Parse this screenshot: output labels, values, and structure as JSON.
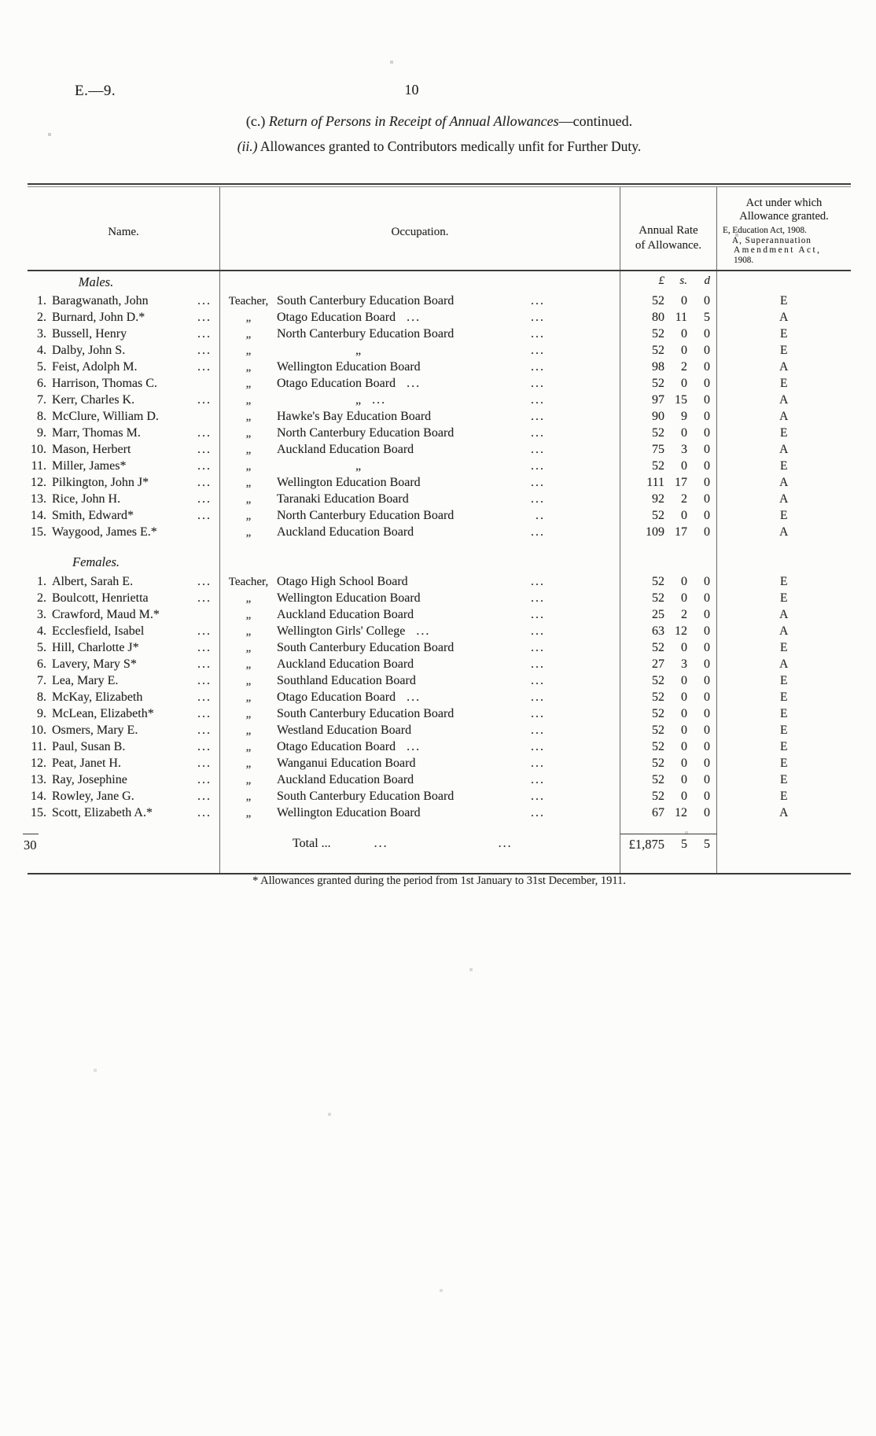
{
  "page": {
    "doc_ref": "E.—9.",
    "page_number": "10",
    "title_prefix": "(c.)",
    "title_main": "Return of Persons in Receipt of Annual Allowances",
    "title_suffix": "—continued.",
    "subtitle_prefix": "(ii.)",
    "subtitle_main": "Allowances granted to Contributors medically unfit for Further Duty."
  },
  "table": {
    "headers": {
      "name": "Name.",
      "occupation": "Occupation.",
      "rate_line1": "Annual Rate",
      "rate_line2": "of Allowance.",
      "act_line1": "Act under which",
      "act_line2": "Allowance granted.",
      "act_note1": "E, Education Act, 1908.",
      "act_note2": "A, Superannuation",
      "act_note3": "Amendment Act,",
      "act_note4": "1908.",
      "currency": {
        "pounds": "£",
        "shillings": "s.",
        "pence": "d"
      }
    },
    "sections": [
      {
        "label": "Males.",
        "currency_header": true,
        "rows": [
          {
            "num": "1.",
            "name": "Baragwanath, John",
            "name_dots": "...",
            "prefix": "Teacher,",
            "board": "South Canterbury Education Board",
            "board_dots": "",
            "end_dots": "...",
            "pounds": "52",
            "shillings": "0",
            "pence": "0",
            "act": "E"
          },
          {
            "num": "2.",
            "name": "Burnard, John D.*",
            "name_dots": "...",
            "prefix": "„",
            "board": "Otago Education Board",
            "board_dots": "...",
            "end_dots": "...",
            "pounds": "80",
            "shillings": "11",
            "pence": "5",
            "act": "A"
          },
          {
            "num": "3.",
            "name": "Bussell, Henry",
            "name_dots": "...",
            "prefix": "„",
            "board": "North Canterbury Education Board",
            "board_dots": "",
            "end_dots": "...",
            "pounds": "52",
            "shillings": "0",
            "pence": "0",
            "act": "E"
          },
          {
            "num": "4.",
            "name": "Dalby, John S.",
            "name_dots": "...",
            "prefix": "„",
            "board": "„",
            "board_dots": "",
            "end_dots": "...",
            "pounds": "52",
            "shillings": "0",
            "pence": "0",
            "act": "E"
          },
          {
            "num": "5.",
            "name": "Feist, Adolph M.",
            "name_dots": "...",
            "prefix": "„",
            "board": "Wellington Education Board",
            "board_dots": "",
            "end_dots": "...",
            "pounds": "98",
            "shillings": "2",
            "pence": "0",
            "act": "A"
          },
          {
            "num": "6.",
            "name": "Harrison, Thomas C.",
            "name_dots": "",
            "prefix": "„",
            "board": "Otago Education Board",
            "board_dots": "...",
            "end_dots": "...",
            "pounds": "52",
            "shillings": "0",
            "pence": "0",
            "act": "E"
          },
          {
            "num": "7.",
            "name": "Kerr, Charles K.",
            "name_dots": "...",
            "prefix": "„",
            "board": "„",
            "board_dots": "...",
            "end_dots": "...",
            "pounds": "97",
            "shillings": "15",
            "pence": "0",
            "act": "A"
          },
          {
            "num": "8.",
            "name": "McClure, William D.",
            "name_dots": "",
            "prefix": "„",
            "board": "Hawke's Bay Education Board",
            "board_dots": "",
            "end_dots": "...",
            "pounds": "90",
            "shillings": "9",
            "pence": "0",
            "act": "A"
          },
          {
            "num": "9.",
            "name": "Marr, Thomas M.",
            "name_dots": "...",
            "prefix": "„",
            "board": "North Canterbury Education Board",
            "board_dots": "",
            "end_dots": "...",
            "pounds": "52",
            "shillings": "0",
            "pence": "0",
            "act": "E"
          },
          {
            "num": "10.",
            "name": "Mason, Herbert",
            "name_dots": "...",
            "prefix": "„",
            "board": "Auckland Education Board",
            "board_dots": "",
            "end_dots": "...",
            "pounds": "75",
            "shillings": "3",
            "pence": "0",
            "act": "A"
          },
          {
            "num": "11.",
            "name": "Miller, James*",
            "name_dots": "...",
            "prefix": "„",
            "board": "„",
            "board_dots": "",
            "end_dots": "...",
            "pounds": "52",
            "shillings": "0",
            "pence": "0",
            "act": "E"
          },
          {
            "num": "12.",
            "name": "Pilkington, John J*",
            "name_dots": "...",
            "prefix": "„",
            "board": "Wellington Education Board",
            "board_dots": "",
            "end_dots": "...",
            "pounds": "111",
            "shillings": "17",
            "pence": "0",
            "act": "A"
          },
          {
            "num": "13.",
            "name": "Rice, John H.",
            "name_dots": "...",
            "prefix": "„",
            "board": "Taranaki Education Board",
            "board_dots": "",
            "end_dots": "...",
            "pounds": "92",
            "shillings": "2",
            "pence": "0",
            "act": "A"
          },
          {
            "num": "14.",
            "name": "Smith, Edward*",
            "name_dots": "...",
            "prefix": "„",
            "board": "North Canterbury Education Board",
            "board_dots": "",
            "end_dots": "..",
            "pounds": "52",
            "shillings": "0",
            "pence": "0",
            "act": "E"
          },
          {
            "num": "15.",
            "name": "Waygood, James E.*",
            "name_dots": "",
            "prefix": "„",
            "board": "Auckland Education Board",
            "board_dots": "",
            "end_dots": "...",
            "pounds": "109",
            "shillings": "17",
            "pence": "0",
            "act": "A"
          }
        ]
      },
      {
        "label": "Females.",
        "currency_header": false,
        "rows": [
          {
            "num": "1.",
            "name": "Albert, Sarah E.",
            "name_dots": "...",
            "prefix": "Teacher,",
            "board": "Otago High School Board",
            "board_dots": "",
            "end_dots": "...",
            "pounds": "52",
            "shillings": "0",
            "pence": "0",
            "act": "E"
          },
          {
            "num": "2.",
            "name": "Boulcott, Henrietta",
            "name_dots": "...",
            "prefix": "„",
            "board": "Wellington Education Board",
            "board_dots": "",
            "end_dots": "...",
            "pounds": "52",
            "shillings": "0",
            "pence": "0",
            "act": "E"
          },
          {
            "num": "3.",
            "name": "Crawford, Maud M.*",
            "name_dots": "",
            "prefix": "„",
            "board": "Auckland Education Board",
            "board_dots": "",
            "end_dots": "...",
            "pounds": "25",
            "shillings": "2",
            "pence": "0",
            "act": "A"
          },
          {
            "num": "4.",
            "name": "Ecclesfield, Isabel",
            "name_dots": "...",
            "prefix": "„",
            "board": "Wellington Girls' College",
            "board_dots": "...",
            "end_dots": "...",
            "pounds": "63",
            "shillings": "12",
            "pence": "0",
            "act": "A"
          },
          {
            "num": "5.",
            "name": "Hill, Charlotte J*",
            "name_dots": "...",
            "prefix": "„",
            "board": "South Canterbury Education Board",
            "board_dots": "",
            "end_dots": "...",
            "pounds": "52",
            "shillings": "0",
            "pence": "0",
            "act": "E"
          },
          {
            "num": "6.",
            "name": "Lavery, Mary S*",
            "name_dots": "...",
            "prefix": "„",
            "board": "Auckland Education Board",
            "board_dots": "",
            "end_dots": "...",
            "pounds": "27",
            "shillings": "3",
            "pence": "0",
            "act": "A"
          },
          {
            "num": "7.",
            "name": "Lea, Mary E.",
            "name_dots": "...",
            "prefix": "„",
            "board": "Southland Education Board",
            "board_dots": "",
            "end_dots": "...",
            "pounds": "52",
            "shillings": "0",
            "pence": "0",
            "act": "E"
          },
          {
            "num": "8.",
            "name": "McKay, Elizabeth",
            "name_dots": "...",
            "prefix": "„",
            "board": "Otago Education Board",
            "board_dots": "...",
            "end_dots": "...",
            "pounds": "52",
            "shillings": "0",
            "pence": "0",
            "act": "E"
          },
          {
            "num": "9.",
            "name": "McLean, Elizabeth*",
            "name_dots": "...",
            "prefix": "„",
            "board": "South Canterbury Education Board",
            "board_dots": "",
            "end_dots": "...",
            "pounds": "52",
            "shillings": "0",
            "pence": "0",
            "act": "E"
          },
          {
            "num": "10.",
            "name": "Osmers, Mary E.",
            "name_dots": "...",
            "prefix": "„",
            "board": "Westland Education Board",
            "board_dots": "",
            "end_dots": "...",
            "pounds": "52",
            "shillings": "0",
            "pence": "0",
            "act": "E"
          },
          {
            "num": "11.",
            "name": "Paul, Susan B.",
            "name_dots": "...",
            "prefix": "„",
            "board": "Otago Education Board",
            "board_dots": "...",
            "end_dots": "...",
            "pounds": "52",
            "shillings": "0",
            "pence": "0",
            "act": "E"
          },
          {
            "num": "12.",
            "name": "Peat, Janet H.",
            "name_dots": "...",
            "prefix": "„",
            "board": "Wanganui Education Board",
            "board_dots": "",
            "end_dots": "...",
            "pounds": "52",
            "shillings": "0",
            "pence": "0",
            "act": "E"
          },
          {
            "num": "13.",
            "name": "Ray, Josephine",
            "name_dots": "...",
            "prefix": "„",
            "board": "Auckland Education Board",
            "board_dots": "",
            "end_dots": "...",
            "pounds": "52",
            "shillings": "0",
            "pence": "0",
            "act": "E"
          },
          {
            "num": "14.",
            "name": "Rowley, Jane G.",
            "name_dots": "...",
            "prefix": "„",
            "board": "South Canterbury Education Board",
            "board_dots": "",
            "end_dots": "...",
            "pounds": "52",
            "shillings": "0",
            "pence": "0",
            "act": "E"
          },
          {
            "num": "15.",
            "name": "Scott, Elizabeth A.*",
            "name_dots": "...",
            "prefix": "„",
            "board": "Wellington Education Board",
            "board_dots": "",
            "end_dots": "...",
            "pounds": "67",
            "shillings": "12",
            "pence": "0",
            "act": "A"
          }
        ]
      }
    ],
    "total": {
      "count": "30",
      "label": "Total ...",
      "dots2": "...",
      "dots3": "...",
      "pounds": "£1,875",
      "shillings": "5",
      "pence": "5"
    },
    "footnote": "* Allowances granted during the period from 1st January to 31st December, 1911."
  }
}
